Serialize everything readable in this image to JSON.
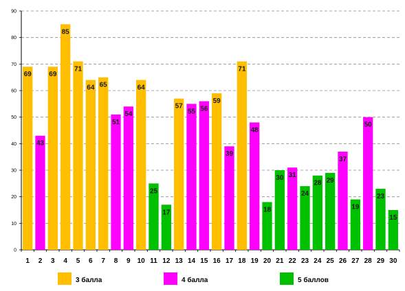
{
  "chart_data": {
    "type": "bar",
    "categories": [
      "1",
      "2",
      "3",
      "4",
      "5",
      "6",
      "7",
      "8",
      "9",
      "10",
      "11",
      "12",
      "13",
      "14",
      "15",
      "16",
      "17",
      "18",
      "19",
      "20",
      "21",
      "22",
      "23",
      "24",
      "25",
      "26",
      "27",
      "28",
      "29",
      "30"
    ],
    "values": [
      69,
      43,
      69,
      85,
      71,
      64,
      65,
      51,
      54,
      64,
      25,
      17,
      57,
      55,
      56,
      59,
      39,
      71,
      48,
      18,
      30,
      31,
      24,
      28,
      29,
      37,
      19,
      50,
      23,
      15
    ],
    "groups": [
      "3",
      "4",
      "3",
      "3",
      "3",
      "3",
      "3",
      "4",
      "4",
      "3",
      "5",
      "5",
      "3",
      "4",
      "4",
      "3",
      "4",
      "3",
      "4",
      "5",
      "5",
      "4",
      "5",
      "5",
      "5",
      "4",
      "5",
      "4",
      "5",
      "5"
    ],
    "legend": [
      {
        "key": "3",
        "label": "3 балла",
        "color": "#FFBF00"
      },
      {
        "key": "4",
        "label": "4 балла",
        "color": "#FF00FF"
      },
      {
        "key": "5",
        "label": "5 баллов",
        "color": "#00C000"
      }
    ],
    "ylim": [
      0,
      90
    ],
    "yticks": [
      0,
      10,
      20,
      30,
      40,
      50,
      60,
      70,
      80,
      90
    ],
    "grid": true,
    "legend_position": "bottom",
    "title": "",
    "xlabel": "",
    "ylabel": ""
  }
}
